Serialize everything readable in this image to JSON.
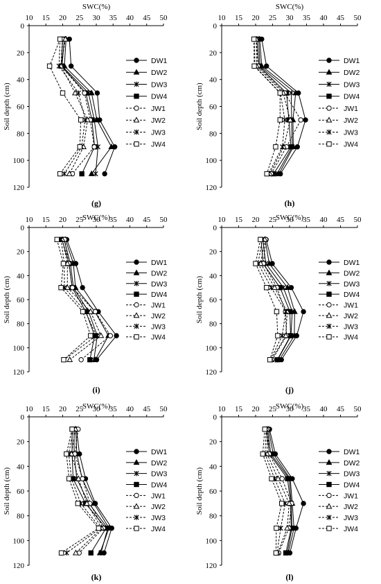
{
  "chart_data": [
    {
      "type": "line",
      "panel_label": "(g)",
      "xlabel": "SWC(%)",
      "ylabel": "Soil depth (cm)",
      "xlim": [
        10,
        50
      ],
      "ylim": [
        0,
        120
      ],
      "x_ticks": [
        "10",
        "15",
        "20",
        "25",
        "30",
        "35",
        "40",
        "45",
        "50"
      ],
      "y_ticks": [
        "0",
        "20",
        "40",
        "60",
        "80",
        "100",
        "120"
      ],
      "depths": [
        10,
        30,
        50,
        70,
        90,
        110
      ],
      "legend_position": "right",
      "series": [
        {
          "name": "DW1",
          "values": [
            22,
            22.5,
            30.3,
            31,
            35.5,
            32.5
          ],
          "marker": "circle-filled",
          "dash": false
        },
        {
          "name": "DW2",
          "values": [
            21,
            20.5,
            28.6,
            30.2,
            34.5,
            28.6
          ],
          "marker": "triangle-filled",
          "dash": false
        },
        {
          "name": "DW3",
          "values": [
            20.5,
            19.8,
            27.7,
            29.4,
            30.5,
            29.8
          ],
          "marker": "x",
          "dash": false
        },
        {
          "name": "DW4",
          "values": [
            20,
            19.6,
            26.9,
            28.7,
            29.5,
            25.7
          ],
          "marker": "square-filled",
          "dash": false
        },
        {
          "name": "JW1",
          "values": [
            19.9,
            19.5,
            26.5,
            28.2,
            29.4,
            22.9
          ],
          "marker": "circle-open",
          "dash": true
        },
        {
          "name": "JW2",
          "values": [
            20.8,
            19.5,
            23.7,
            27.4,
            26.2,
            22
          ],
          "marker": "triangle-open",
          "dash": true
        },
        {
          "name": "JW3",
          "values": [
            19.2,
            18.9,
            24.7,
            26.7,
            25.6,
            20.5
          ],
          "marker": "x",
          "dash": true
        },
        {
          "name": "JW4",
          "values": [
            19.2,
            16.1,
            20,
            25.4,
            25.1,
            19.2
          ],
          "marker": "square-open",
          "dash": true
        }
      ]
    },
    {
      "type": "line",
      "panel_label": "(h)",
      "xlabel": "SWC(%)",
      "ylabel": "Soil depth (cm)",
      "xlim": [
        10,
        50
      ],
      "ylim": [
        0,
        120
      ],
      "x_ticks": [
        "10",
        "15",
        "20",
        "25",
        "30",
        "35",
        "40",
        "45",
        "50"
      ],
      "y_ticks": [
        "0",
        "20",
        "40",
        "60",
        "80",
        "100",
        "120"
      ],
      "depths": [
        10,
        30,
        50,
        70,
        90,
        110
      ],
      "legend_position": "right",
      "series": [
        {
          "name": "DW1",
          "values": [
            21.8,
            23.2,
            32.6,
            34.7,
            32.3,
            27.3
          ],
          "marker": "circle-filled",
          "dash": false
        },
        {
          "name": "DW2",
          "values": [
            21.2,
            21.8,
            31.8,
            31,
            31.1,
            26.9
          ],
          "marker": "triangle-filled",
          "dash": false
        },
        {
          "name": "DW3",
          "values": [
            20.9,
            21.3,
            30.5,
            30.6,
            30.8,
            26.3
          ],
          "marker": "x",
          "dash": false
        },
        {
          "name": "DW4",
          "values": [
            20.4,
            21,
            29.1,
            29.8,
            30.4,
            25.3
          ],
          "marker": "square-filled",
          "dash": false
        },
        {
          "name": "JW1",
          "values": [
            20.2,
            20.7,
            28.6,
            33.3,
            29.1,
            24.6
          ],
          "marker": "circle-open",
          "dash": true
        },
        {
          "name": "JW2",
          "values": [
            20.2,
            20.3,
            28.1,
            30.2,
            28.3,
            24.2
          ],
          "marker": "triangle-open",
          "dash": true
        },
        {
          "name": "JW3",
          "values": [
            19.6,
            19.8,
            27.3,
            28.6,
            27.9,
            23.8
          ],
          "marker": "x",
          "dash": true
        },
        {
          "name": "JW4",
          "values": [
            19.5,
            19.6,
            27.2,
            27.2,
            25.9,
            23.3
          ],
          "marker": "square-open",
          "dash": true
        }
      ]
    },
    {
      "type": "line",
      "panel_label": "(i)",
      "xlabel": "SWC(%)",
      "ylabel": "Soil depth (cm)",
      "xlim": [
        10,
        50
      ],
      "ylim": [
        0,
        120
      ],
      "x_ticks": [
        "10",
        "15",
        "20",
        "25",
        "30",
        "35",
        "40",
        "45",
        "50"
      ],
      "y_ticks": [
        "0",
        "20",
        "40",
        "60",
        "80",
        "100",
        "120"
      ],
      "depths": [
        10,
        30,
        50,
        70,
        90,
        110
      ],
      "legend_position": "right",
      "series": [
        {
          "name": "DW1",
          "values": [
            21.2,
            23.9,
            25.9,
            30.6,
            36,
            30.1
          ],
          "marker": "circle-filled",
          "dash": false
        },
        {
          "name": "DW2",
          "values": [
            20.8,
            23.2,
            23.8,
            29.6,
            33.6,
            29.7
          ],
          "marker": "triangle-filled",
          "dash": false
        },
        {
          "name": "DW3",
          "values": [
            20.4,
            22.3,
            23.2,
            27.7,
            30.3,
            29.3
          ],
          "marker": "x",
          "dash": false
        },
        {
          "name": "DW4",
          "values": [
            19.8,
            21.9,
            22.8,
            26.9,
            29.5,
            28.1
          ],
          "marker": "square-filled",
          "dash": false
        },
        {
          "name": "JW1",
          "values": [
            20.6,
            21.8,
            22.9,
            29.7,
            34.2,
            25.5
          ],
          "marker": "circle-open",
          "dash": true
        },
        {
          "name": "JW2",
          "values": [
            19.9,
            21.4,
            21.4,
            28.3,
            31.4,
            22.1
          ],
          "marker": "triangle-open",
          "dash": true
        },
        {
          "name": "JW3",
          "values": [
            19.5,
            20.5,
            20.5,
            26.8,
            30,
            20.4
          ],
          "marker": "x",
          "dash": true
        },
        {
          "name": "JW4",
          "values": [
            18.3,
            20.2,
            19.5,
            26,
            28.3,
            20.3
          ],
          "marker": "square-open",
          "dash": true
        }
      ]
    },
    {
      "type": "line",
      "panel_label": "(j)",
      "xlabel": "SWC(%)",
      "ylabel": "Soil depth (cm)",
      "xlim": [
        10,
        50
      ],
      "ylim": [
        0,
        120
      ],
      "x_ticks": [
        "10",
        "15",
        "20",
        "25",
        "30",
        "35",
        "40",
        "45",
        "50"
      ],
      "y_ticks": [
        "0",
        "20",
        "40",
        "60",
        "80",
        "100",
        "120"
      ],
      "depths": [
        10,
        30,
        50,
        70,
        90,
        110
      ],
      "legend_position": "right",
      "series": [
        {
          "name": "DW1",
          "values": [
            23.1,
            24.9,
            30.5,
            34.1,
            32.1,
            27.6
          ],
          "marker": "circle-filled",
          "dash": false
        },
        {
          "name": "DW2",
          "values": [
            22.8,
            24,
            29.4,
            31.5,
            31.4,
            27
          ],
          "marker": "triangle-filled",
          "dash": false
        },
        {
          "name": "DW3",
          "values": [
            22.1,
            23,
            28.2,
            30.8,
            30.4,
            26.5
          ],
          "marker": "x",
          "dash": false
        },
        {
          "name": "DW4",
          "values": [
            21.6,
            22.2,
            27.2,
            30.1,
            30.3,
            26.4
          ],
          "marker": "square-filled",
          "dash": false
        },
        {
          "name": "JW1",
          "values": [
            23,
            22.3,
            26.3,
            28.8,
            29.1,
            24.9
          ],
          "marker": "circle-open",
          "dash": true
        },
        {
          "name": "JW2",
          "values": [
            22.7,
            21.5,
            25.6,
            29.3,
            28.9,
            24.6
          ],
          "marker": "triangle-open",
          "dash": true
        },
        {
          "name": "JW3",
          "values": [
            22,
            20.7,
            24.6,
            28.9,
            27.8,
            24.4
          ],
          "marker": "x",
          "dash": true
        },
        {
          "name": "JW4",
          "values": [
            21.4,
            20,
            23.2,
            26.2,
            26.5,
            24.2
          ],
          "marker": "square-open",
          "dash": true
        }
      ]
    },
    {
      "type": "line",
      "panel_label": "(k)",
      "xlabel": "SWC(%)",
      "ylabel": "Soil depth (cm)",
      "xlim": [
        10,
        50
      ],
      "ylim": [
        0,
        120
      ],
      "x_ticks": [
        "10",
        "15",
        "20",
        "25",
        "30",
        "35",
        "40",
        "45",
        "50"
      ],
      "y_ticks": [
        "0",
        "20",
        "40",
        "60",
        "80",
        "100",
        "120"
      ],
      "depths": [
        10,
        30,
        50,
        70,
        90,
        110
      ],
      "legend_position": "right",
      "series": [
        {
          "name": "DW1",
          "values": [
            24.1,
            25,
            26.8,
            29.7,
            34.6,
            32.3
          ],
          "marker": "circle-filled",
          "dash": false
        },
        {
          "name": "DW2",
          "values": [
            23.9,
            24.2,
            25.8,
            29.3,
            33.8,
            31.1
          ],
          "marker": "triangle-filled",
          "dash": false
        },
        {
          "name": "DW3",
          "values": [
            23.4,
            23.4,
            24.2,
            27.8,
            33.4,
            31.4
          ],
          "marker": "x",
          "dash": false
        },
        {
          "name": "DW4",
          "values": [
            22.8,
            22.8,
            23.1,
            26.8,
            32.9,
            28.4
          ],
          "marker": "square-filled",
          "dash": false
        },
        {
          "name": "JW1",
          "values": [
            24.6,
            23.6,
            25.9,
            28.1,
            32.1,
            24.9
          ],
          "marker": "circle-open",
          "dash": true
        },
        {
          "name": "JW2",
          "values": [
            23.8,
            22.6,
            24.7,
            27.2,
            31.6,
            23.9
          ],
          "marker": "triangle-open",
          "dash": true
        },
        {
          "name": "JW3",
          "values": [
            23.2,
            21.8,
            22.6,
            25.4,
            31.2,
            21.2
          ],
          "marker": "x",
          "dash": true
        },
        {
          "name": "JW4",
          "values": [
            22.8,
            21.1,
            21.9,
            24.5,
            30.7,
            19.6
          ],
          "marker": "square-open",
          "dash": true
        }
      ]
    },
    {
      "type": "line",
      "panel_label": "(l)",
      "xlabel": "SWC(%)",
      "ylabel": "Soil depth (cm)",
      "xlim": [
        10,
        50
      ],
      "ylim": [
        0,
        120
      ],
      "x_ticks": [
        "10",
        "15",
        "20",
        "25",
        "30",
        "35",
        "40",
        "45",
        "50"
      ],
      "y_ticks": [
        "0",
        "20",
        "40",
        "60",
        "80",
        "100",
        "120"
      ],
      "depths": [
        10,
        30,
        50,
        70,
        90,
        110
      ],
      "legend_position": "right",
      "series": [
        {
          "name": "DW1",
          "values": [
            24.1,
            25.8,
            30.8,
            34.1,
            31.9,
            30.1
          ],
          "marker": "circle-filled",
          "dash": false
        },
        {
          "name": "DW2",
          "values": [
            23.8,
            25.2,
            30.2,
            30.8,
            31.3,
            29.6
          ],
          "marker": "triangle-filled",
          "dash": false
        },
        {
          "name": "DW3",
          "values": [
            23.5,
            24.5,
            29.9,
            30.5,
            30.7,
            29.3
          ],
          "marker": "x",
          "dash": false
        },
        {
          "name": "DW4",
          "values": [
            23.1,
            24.1,
            29.4,
            30.3,
            30.5,
            28.9
          ],
          "marker": "square-filled",
          "dash": false
        },
        {
          "name": "JW1",
          "values": [
            23.6,
            24,
            27.8,
            30.6,
            29.8,
            26.8
          ],
          "marker": "circle-open",
          "dash": true
        },
        {
          "name": "JW2",
          "values": [
            23.4,
            23.4,
            26.6,
            29.9,
            29.3,
            26.5
          ],
          "marker": "triangle-open",
          "dash": true
        },
        {
          "name": "JW3",
          "values": [
            23.1,
            22.8,
            25.6,
            28.7,
            27.4,
            26.3
          ],
          "marker": "x",
          "dash": true
        },
        {
          "name": "JW4",
          "values": [
            22.7,
            22.1,
            24.7,
            27.7,
            26.1,
            26
          ],
          "marker": "square-open",
          "dash": true
        }
      ]
    }
  ]
}
